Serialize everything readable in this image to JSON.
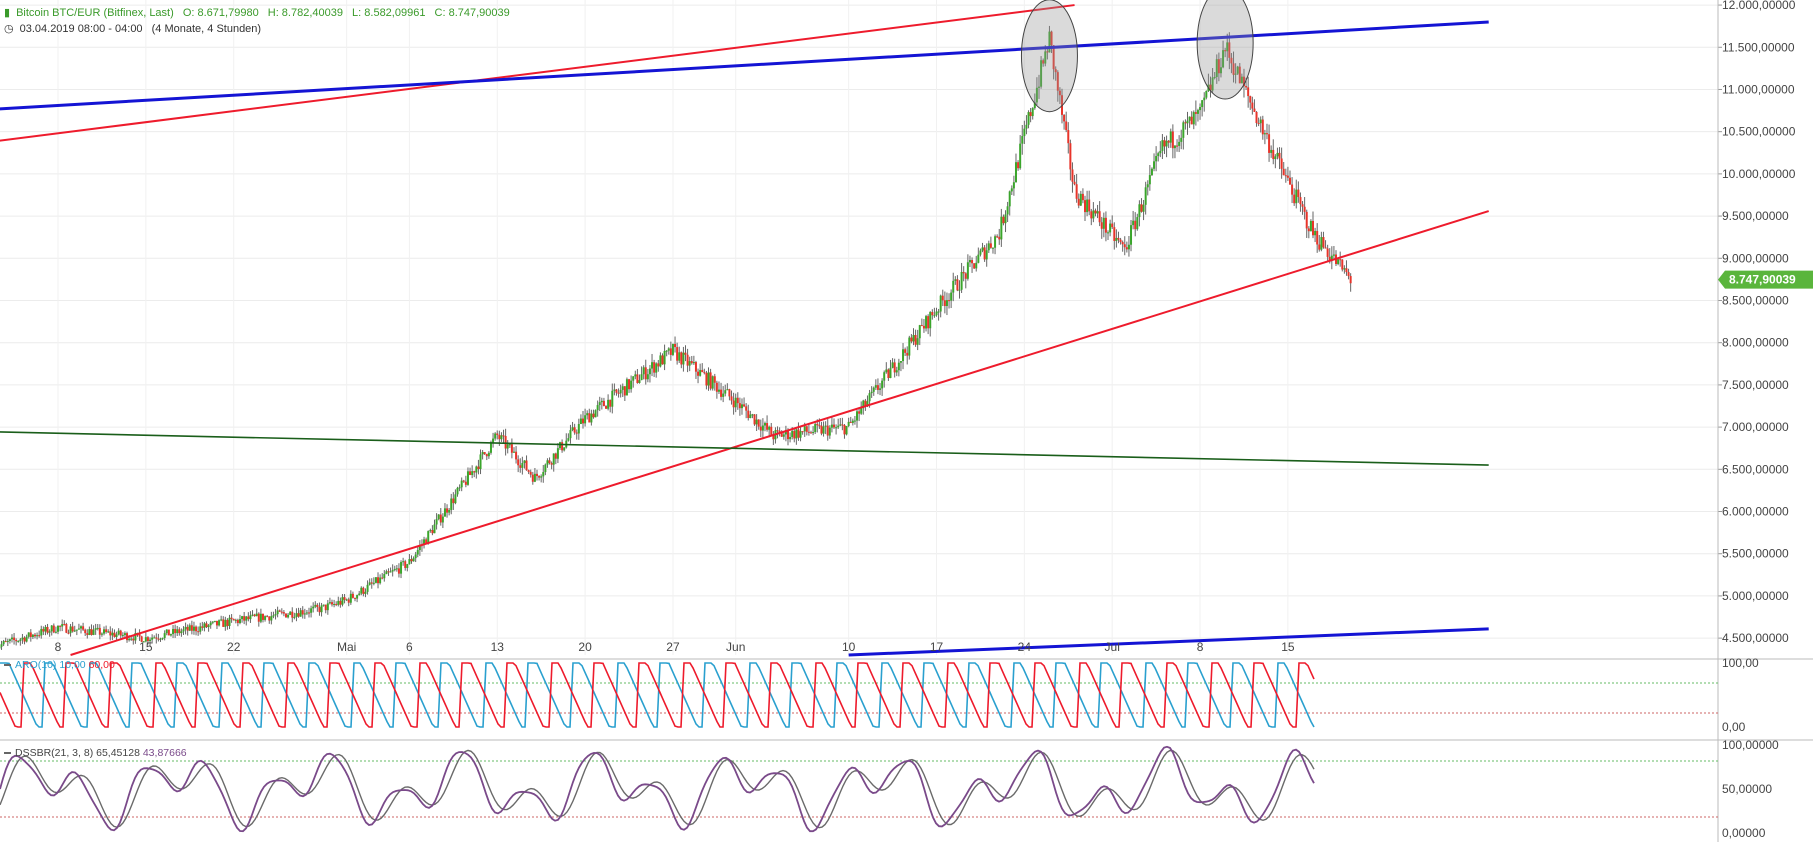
{
  "header": {
    "instrument": "Bitcoin BTC/EUR (Bitfinex, Last)",
    "open": "O: 8.671,79980",
    "high": "H: 8.782,40039",
    "low": "L: 8.582,09961",
    "close": "C: 8.747,90039",
    "datetime": "03.04.2019 08:00 - 04:00",
    "period": "(4 Monate, 4 Stunden)",
    "clock_icon": "clock-icon",
    "candle_icon": "candlestick-icon"
  },
  "colors": {
    "up": "#3aa52b",
    "down": "#e8342a",
    "wick": "#666666",
    "trend_red": "#ee1b2c",
    "trend_blue": "#1414d4",
    "trend_green": "#1a5e1a",
    "aro_up": "#2aa0cf",
    "aro_down": "#ee1b2c",
    "dss_line": "#7a4a8a",
    "dss_signal": "#6a6a6a",
    "fill_green": "#88cc66",
    "fill_red": "#ee8888",
    "last_price_bg": "#5ab53c"
  },
  "indicators": {
    "aro": {
      "name": "ARO(10)",
      "v1": "10,00",
      "v2": "60,00"
    },
    "dss": {
      "name": "DSSBR(21, 3, 8)",
      "v1": "65,45128",
      "v2": "43,87666"
    }
  },
  "chart_data": {
    "type": "candlestick",
    "title": "Bitcoin BTC/EUR (Bitfinex, Last)",
    "x_labels": [
      "8",
      "15",
      "22",
      "Mai",
      "6",
      "13",
      "20",
      "27",
      "Jun",
      "10",
      "17",
      "24",
      "Jul",
      "8",
      "15"
    ],
    "y_ticks": [
      "12.000,00000",
      "11.500,00000",
      "11.000,00000",
      "10.500,00000",
      "10.000,00000",
      "9.500,00000",
      "9.000,00000",
      "8.500,00000",
      "8.000,00000",
      "7.500,00000",
      "7.000,00000",
      "6.500,00000",
      "6.000,00000",
      "5.500,00000",
      "5.000,00000",
      "4.500,00000"
    ],
    "y_values": [
      12000,
      11500,
      11000,
      10500,
      10000,
      9500,
      9000,
      8500,
      8000,
      7500,
      7000,
      6500,
      6000,
      5500,
      5000,
      4500
    ],
    "last_price": "8.747,90039",
    "last_value": 8747.9,
    "ylim": [
      4300,
      12060
    ],
    "key_prices": [
      {
        "date": "2019-04-03",
        "close": 4400
      },
      {
        "date": "2019-04-08",
        "close": 4630
      },
      {
        "date": "2019-04-15",
        "close": 4500
      },
      {
        "date": "2019-04-22",
        "close": 4700
      },
      {
        "date": "2019-04-29",
        "close": 4850
      },
      {
        "date": "2019-05-01",
        "close": 4950
      },
      {
        "date": "2019-05-06",
        "close": 5400
      },
      {
        "date": "2019-05-13",
        "close": 6900
      },
      {
        "date": "2019-05-16",
        "close": 6400
      },
      {
        "date": "2019-05-20",
        "close": 7100
      },
      {
        "date": "2019-05-27",
        "close": 7900
      },
      {
        "date": "2019-06-01",
        "close": 7300
      },
      {
        "date": "2019-06-04",
        "close": 6900
      },
      {
        "date": "2019-06-10",
        "close": 7000
      },
      {
        "date": "2019-06-17",
        "close": 8400
      },
      {
        "date": "2019-06-22",
        "close": 9300
      },
      {
        "date": "2019-06-26",
        "close": 11600
      },
      {
        "date": "2019-06-28",
        "close": 9800
      },
      {
        "date": "2019-07-02",
        "close": 9100
      },
      {
        "date": "2019-07-05",
        "close": 10300
      },
      {
        "date": "2019-07-08",
        "close": 10700
      },
      {
        "date": "2019-07-10",
        "close": 11500
      },
      {
        "date": "2019-07-14",
        "close": 10200
      },
      {
        "date": "2019-07-17",
        "close": 9300
      },
      {
        "date": "2019-07-20",
        "close": 8747.9
      }
    ],
    "trendlines": [
      {
        "color": "red",
        "from": {
          "date": "2019-04-01",
          "value": 10350
        },
        "to": {
          "date": "2019-06-28",
          "value": 12000
        }
      },
      {
        "color": "blue",
        "from": {
          "date": "2019-04-01",
          "value": 10750
        },
        "to": {
          "date": "2019-07-31",
          "value": 11800
        }
      },
      {
        "color": "red",
        "from": {
          "date": "2019-04-09",
          "value": 4300
        },
        "to": {
          "date": "2019-07-31",
          "value": 9560
        }
      },
      {
        "color": "green",
        "from": {
          "date": "2019-04-01",
          "value": 6950
        },
        "to": {
          "date": "2019-07-31",
          "value": 6550
        }
      },
      {
        "color": "blue",
        "from": {
          "date": "2019-06-10",
          "value": 4300
        },
        "to": {
          "date": "2019-07-31",
          "value": 4610
        }
      }
    ],
    "highlight_ellipses": [
      {
        "date": "2019-06-26",
        "center_value": 11400
      },
      {
        "date": "2019-07-10",
        "center_value": 11550
      }
    ],
    "panels": [
      {
        "name": "ARO(10)",
        "type": "line",
        "y_ticks": [
          "100,00",
          "0,00"
        ],
        "ylim": [
          0,
          100
        ]
      },
      {
        "name": "DSSBR(21, 3, 8)",
        "type": "line",
        "y_ticks": [
          "100,00000",
          "50,00000",
          "0,00000"
        ],
        "ylim": [
          0,
          100
        ]
      }
    ]
  }
}
